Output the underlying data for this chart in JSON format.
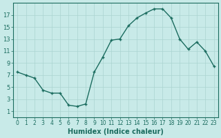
{
  "x": [
    0,
    1,
    2,
    3,
    4,
    5,
    6,
    7,
    8,
    9,
    10,
    11,
    12,
    13,
    14,
    15,
    16,
    17,
    18,
    19,
    20,
    21,
    22,
    23
  ],
  "y": [
    7.5,
    7.0,
    6.5,
    4.5,
    4.0,
    4.0,
    2.0,
    1.8,
    2.2,
    7.5,
    10.0,
    12.8,
    13.0,
    15.2,
    16.5,
    17.3,
    18.0,
    18.0,
    16.5,
    13.0,
    11.3,
    12.5,
    11.0,
    8.5
  ],
  "xlabel": "Humidex (Indice chaleur)",
  "xlim": [
    -0.5,
    23.5
  ],
  "ylim": [
    0,
    19
  ],
  "yticks": [
    1,
    3,
    5,
    7,
    9,
    11,
    13,
    15,
    17
  ],
  "xticks": [
    0,
    1,
    2,
    3,
    4,
    5,
    6,
    7,
    8,
    9,
    10,
    11,
    12,
    13,
    14,
    15,
    16,
    17,
    18,
    19,
    20,
    21,
    22,
    23
  ],
  "bg_color": "#c8eae8",
  "grid_color": "#aad4d0",
  "line_color": "#1a6b5e",
  "linewidth": 1.0,
  "markersize": 3.5,
  "xlabel_fontsize": 7,
  "tick_fontsize_x": 5.5,
  "tick_fontsize_y": 6.0
}
